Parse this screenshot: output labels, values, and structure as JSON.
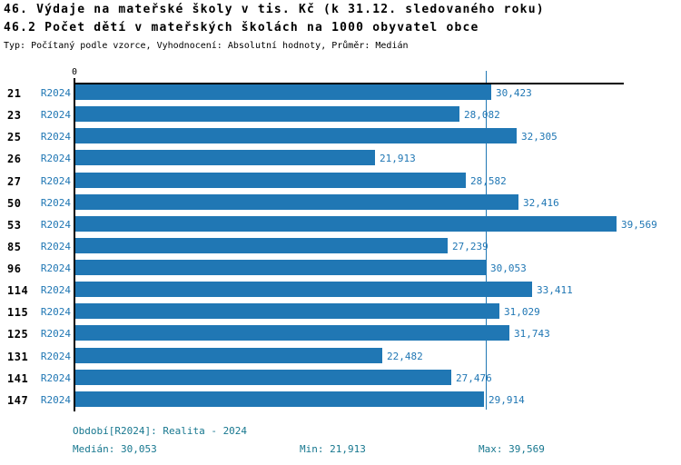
{
  "header": {
    "title": "46. Výdaje na mateřské školy v tis. Kč (k 31.12. sledovaného roku)",
    "subtitle": "46.2 Počet dětí v mateřských školách na 1000 obyvatel obce",
    "meta": "Typ: Počítaný podle vzorce, Vyhodnocení: Absolutní hodnoty, Průměr: Medián"
  },
  "chart_data": {
    "type": "bar",
    "orientation": "horizontal",
    "title": "46.2 Počet dětí v mateřských školách na 1000 obyvatel obce",
    "xlabel": "",
    "ylabel": "",
    "xlim": [
      0,
      40.133
    ],
    "x_axis": {
      "zero_label": "0"
    },
    "grid": false,
    "legend_position": "none",
    "series_name": "R2024",
    "median_value": 30.053,
    "categories": [
      "21",
      "23",
      "25",
      "26",
      "27",
      "50",
      "53",
      "85",
      "96",
      "114",
      "115",
      "125",
      "131",
      "141",
      "147"
    ],
    "rows": [
      {
        "id": "21",
        "period": "R2024",
        "value": 30.423,
        "label": "30,423"
      },
      {
        "id": "23",
        "period": "R2024",
        "value": 28.082,
        "label": "28,082"
      },
      {
        "id": "25",
        "period": "R2024",
        "value": 32.305,
        "label": "32,305"
      },
      {
        "id": "26",
        "period": "R2024",
        "value": 21.913,
        "label": "21,913"
      },
      {
        "id": "27",
        "period": "R2024",
        "value": 28.582,
        "label": "28,582"
      },
      {
        "id": "50",
        "period": "R2024",
        "value": 32.416,
        "label": "32,416"
      },
      {
        "id": "53",
        "period": "R2024",
        "value": 39.569,
        "label": "39,569"
      },
      {
        "id": "85",
        "period": "R2024",
        "value": 27.239,
        "label": "27,239"
      },
      {
        "id": "96",
        "period": "R2024",
        "value": 30.053,
        "label": "30,053"
      },
      {
        "id": "114",
        "period": "R2024",
        "value": 33.411,
        "label": "33,411"
      },
      {
        "id": "115",
        "period": "R2024",
        "value": 31.029,
        "label": "31,029"
      },
      {
        "id": "125",
        "period": "R2024",
        "value": 31.743,
        "label": "31,743"
      },
      {
        "id": "131",
        "period": "R2024",
        "value": 22.482,
        "label": "22,482"
      },
      {
        "id": "141",
        "period": "R2024",
        "value": 27.476,
        "label": "27,476"
      },
      {
        "id": "147",
        "period": "R2024",
        "value": 29.914,
        "label": "29,914"
      }
    ]
  },
  "footer": {
    "period_info": "Období[R2024]: Realita - 2024",
    "median": "Medián: 30,053",
    "min": "Min: 21,913",
    "max": "Max: 39,569"
  },
  "colors": {
    "bar": "#2077b4",
    "value_text": "#2077b4",
    "series_text": "#2077b4",
    "median_line": "#2077b4",
    "footer_text": "#17778f",
    "axis": "#000000"
  }
}
